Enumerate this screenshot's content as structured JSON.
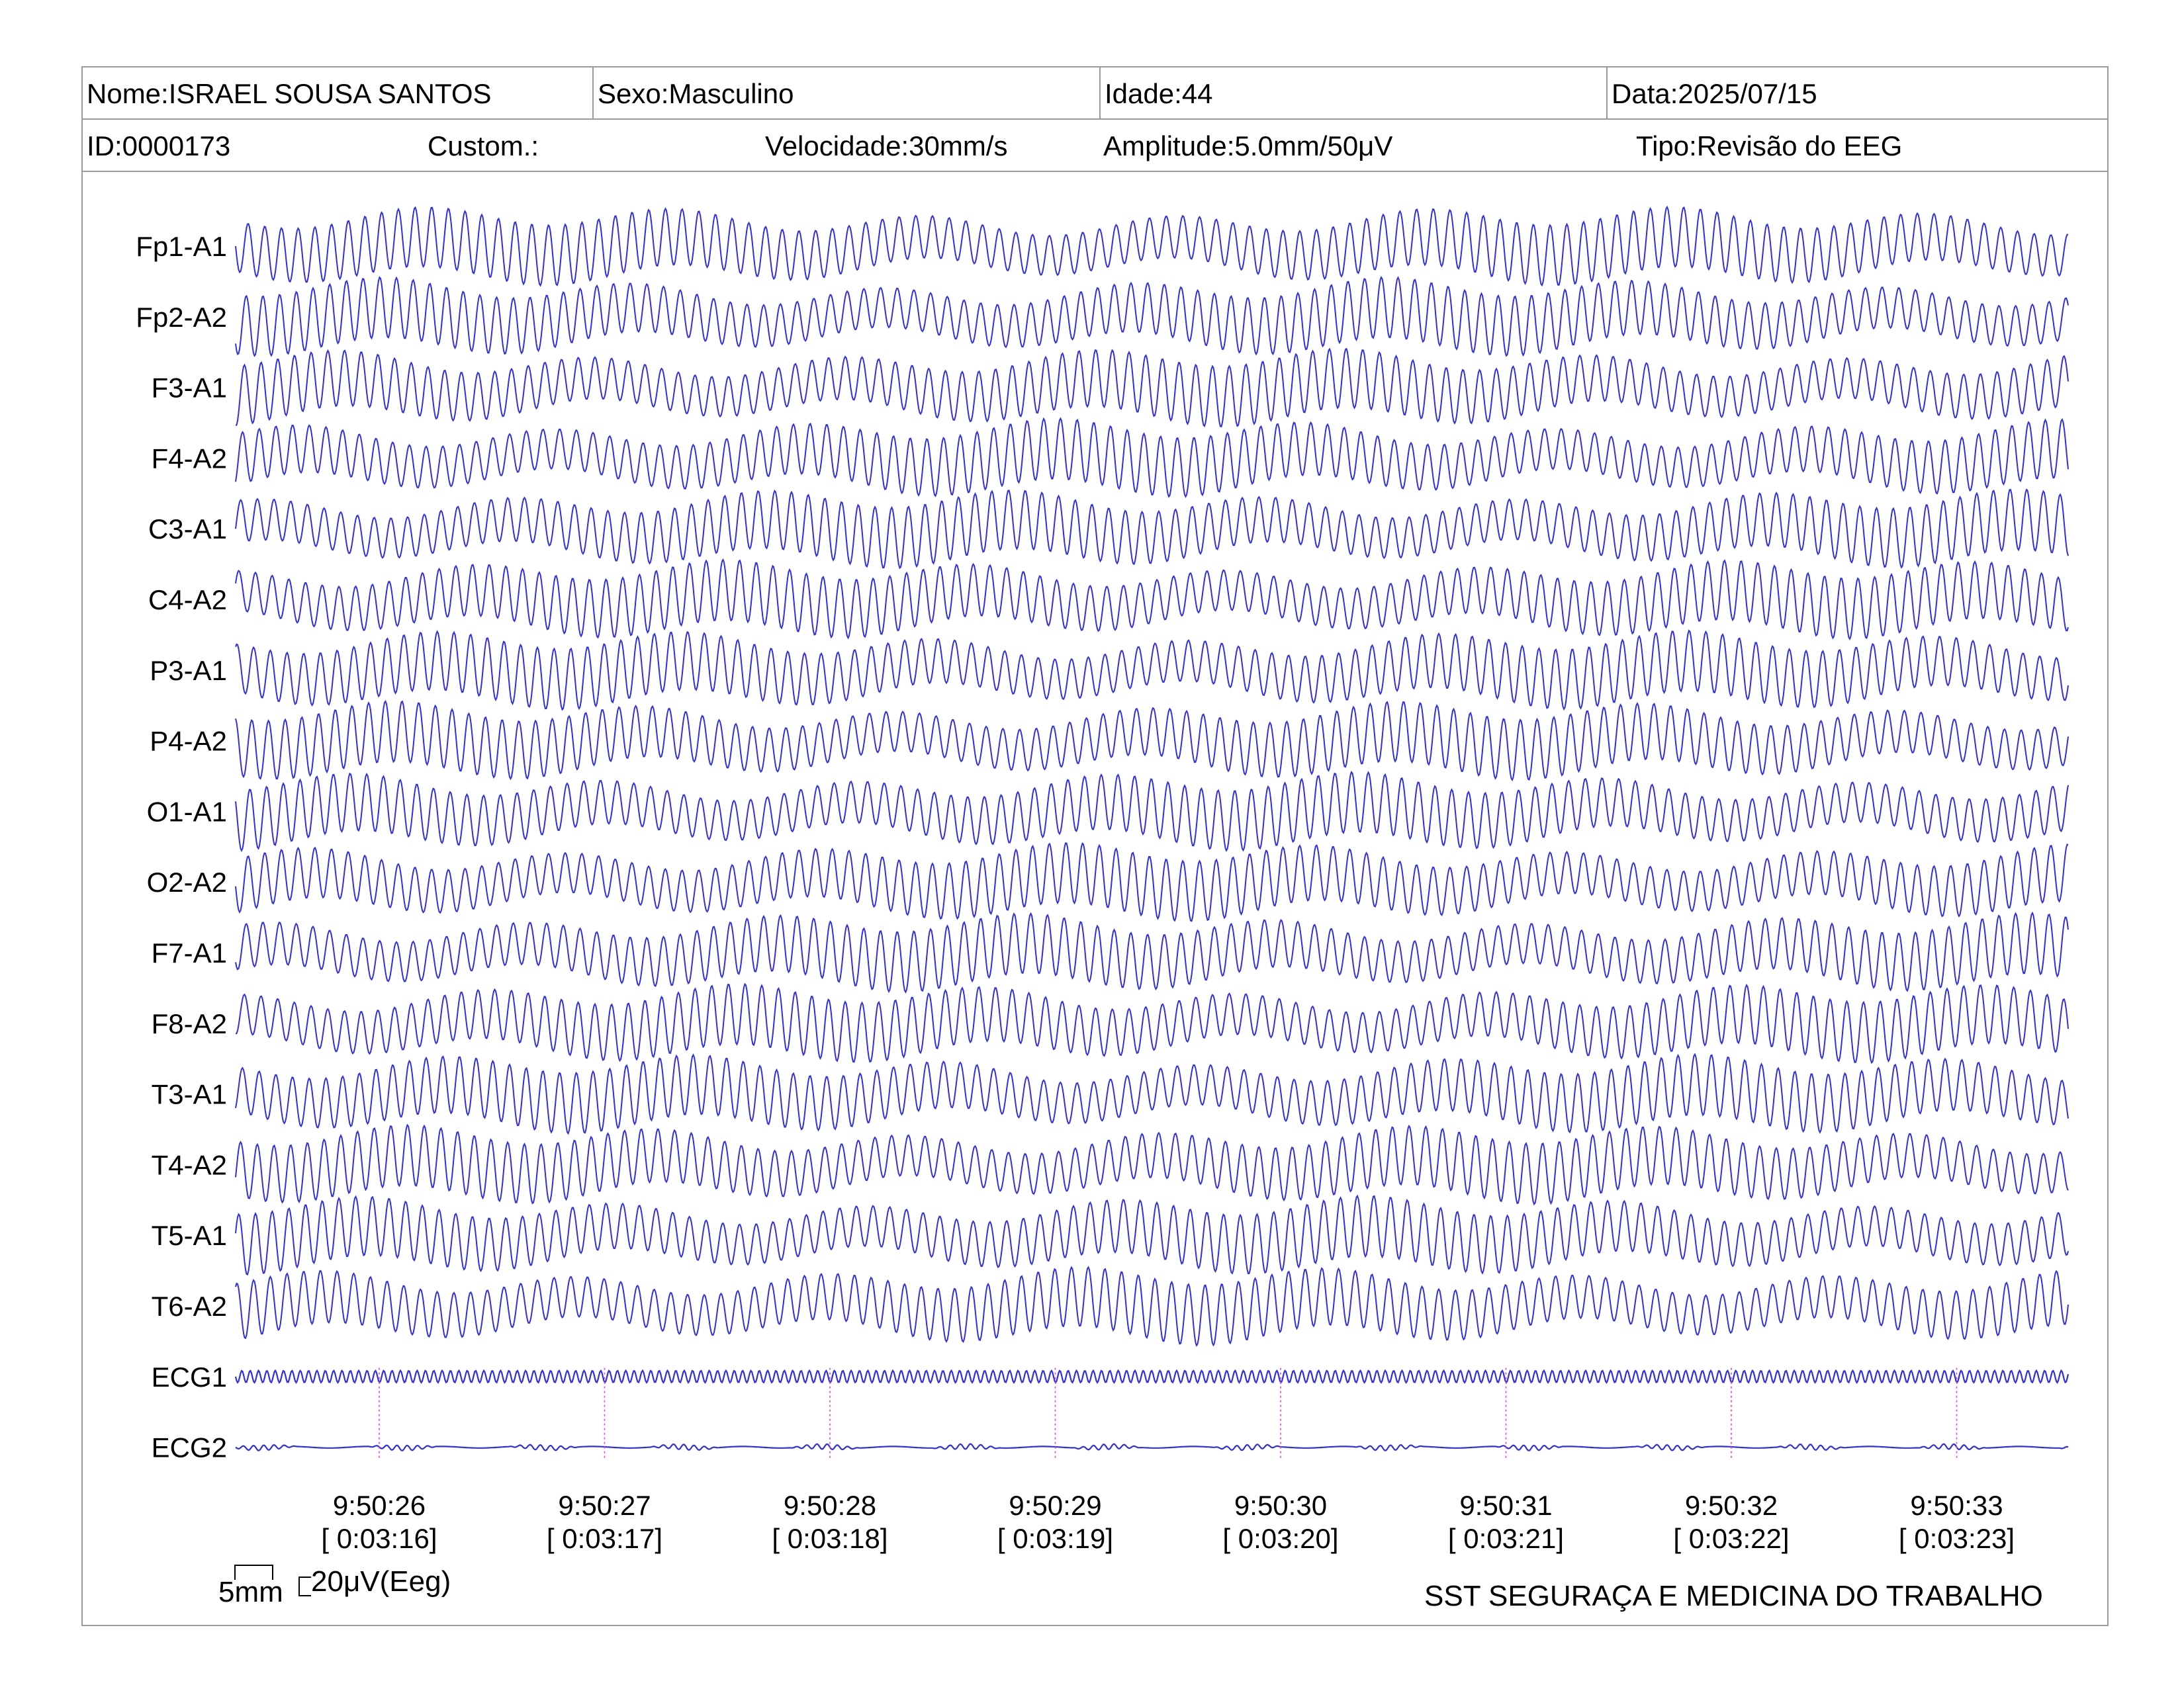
{
  "header": {
    "name": "Nome:ISRAEL SOUSA SANTOS",
    "sex": "Sexo:Masculino",
    "age": "Idade:44",
    "date": "Data:2025/07/15",
    "id": "ID:0000173",
    "custom": "Custom.:",
    "speed": "Velocidade:30mm/s",
    "amplitude": "Amplitude:5.0mm/50μV",
    "type": "Tipo:Revisão do EEG"
  },
  "calibration": {
    "time_scale": "5mm",
    "amplitude_scale": "20μV(Eeg)"
  },
  "footer": {
    "institution": "SST SEGURAÇA E MEDICINA DO TRABALHO"
  },
  "colors": {
    "trace": "#2e2ee6",
    "marker": "#e040e0",
    "frame": "#9a9a9a"
  },
  "chart_data": {
    "type": "line",
    "channels": [
      "Fp1-A1",
      "Fp2-A2",
      "F3-A1",
      "F4-A2",
      "C3-A1",
      "C4-A2",
      "P3-A1",
      "P4-A2",
      "O1-A1",
      "O2-A2",
      "F7-A1",
      "F8-A2",
      "T3-A1",
      "T4-A2",
      "T5-A1",
      "T6-A2",
      "ECG1",
      "ECG2"
    ],
    "time_marks": [
      {
        "clock": "9:50:26",
        "elapsed": "[ 0:03:16]"
      },
      {
        "clock": "9:50:27",
        "elapsed": "[ 0:03:17]"
      },
      {
        "clock": "9:50:28",
        "elapsed": "[ 0:03:18]"
      },
      {
        "clock": "9:50:29",
        "elapsed": "[ 0:03:19]"
      },
      {
        "clock": "9:50:30",
        "elapsed": "[ 0:03:20]"
      },
      {
        "clock": "9:50:31",
        "elapsed": "[ 0:03:21]"
      },
      {
        "clock": "9:50:32",
        "elapsed": "[ 0:03:22]"
      },
      {
        "clock": "9:50:33",
        "elapsed": "[ 0:03:23]"
      }
    ],
    "waveform": {
      "eeg_cycles_per_second": 13.5,
      "ecg1_cycles_per_second": 27,
      "eeg_style": "high-amplitude sinusoidal oscillation, overlapping adjacent channels",
      "ecg2_style": "near-flat baseline with small intermittent deflections"
    },
    "grid": false
  }
}
